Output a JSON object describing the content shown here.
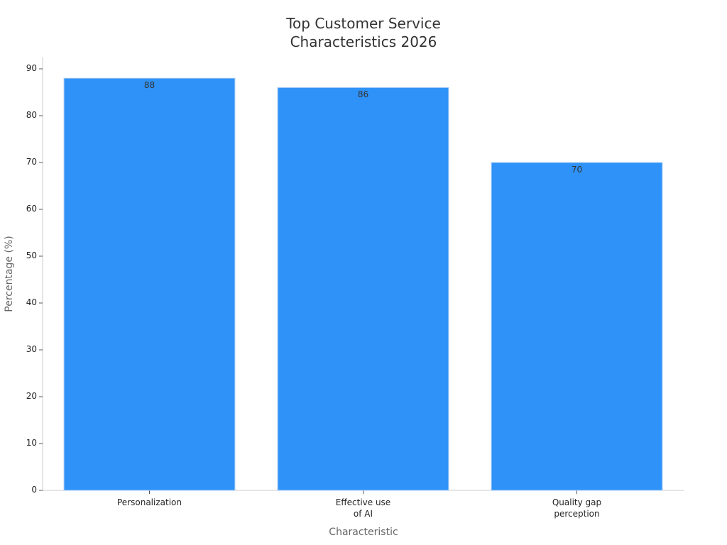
{
  "chart_data": {
    "type": "bar",
    "title": "Top Customer Service\nCharacteristics 2026",
    "x_label": "Characteristic",
    "y_label": "Percentage (%)",
    "categories": [
      "Personalization",
      "Effective use\nof AI",
      "Quality gap\nperception"
    ],
    "values": [
      88,
      86,
      70
    ],
    "color": "#2f92f8",
    "ylim": [
      0,
      92.5
    ],
    "yticks": [
      0,
      10,
      20,
      30,
      40,
      50,
      60,
      70,
      80,
      90
    ],
    "grid": false
  }
}
